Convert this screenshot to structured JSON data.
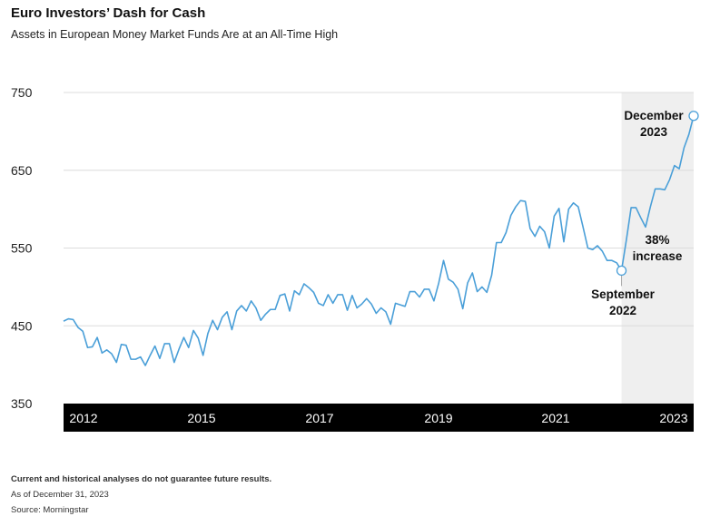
{
  "title": "Euro Investors’ Dash for Cash",
  "subtitle": "Assets in European Money Market Funds Are at an All-Time High",
  "footnotes": {
    "disclaimer": "Current and historical analyses do not guarantee future results.",
    "as_of": "As of December 31, 2023",
    "source": "Source: Morningstar"
  },
  "colors": {
    "line": "#4a9fd8",
    "shade": "#efefef",
    "axis_band": "#000000"
  },
  "chart_data": {
    "type": "line",
    "title": "Euro Investors’ Dash for Cash",
    "ylim": [
      350,
      750
    ],
    "yticks": [
      "350",
      "450",
      "550",
      "650",
      "750"
    ],
    "xticks": [
      "2012",
      "2015",
      "2017",
      "2019",
      "2021",
      "2023"
    ],
    "grid": true,
    "shaded_period": [
      "September 2022",
      "December 2023"
    ],
    "values": [
      456,
      459,
      458,
      448,
      443,
      422,
      423,
      435,
      415,
      419,
      414,
      403,
      426,
      425,
      407,
      407,
      410,
      399,
      412,
      424,
      408,
      427,
      427,
      403,
      420,
      435,
      422,
      444,
      434,
      412,
      440,
      457,
      445,
      461,
      468,
      445,
      469,
      476,
      469,
      482,
      473,
      457,
      465,
      471,
      471,
      489,
      491,
      469,
      495,
      490,
      504,
      499,
      493,
      479,
      476,
      490,
      479,
      490,
      490,
      470,
      489,
      473,
      478,
      485,
      478,
      466,
      473,
      468,
      452,
      479,
      477,
      475,
      494,
      494,
      487,
      497,
      497,
      482,
      505,
      534,
      510,
      506,
      497,
      472,
      505,
      518,
      494,
      500,
      493,
      515,
      557,
      557,
      570,
      592,
      603,
      611,
      610,
      575,
      565,
      578,
      571,
      550,
      591,
      601,
      558,
      600,
      608,
      603,
      577,
      550,
      548,
      553,
      546,
      534,
      534,
      531,
      521,
      560,
      602,
      602,
      589,
      577,
      603,
      626,
      626,
      625,
      638,
      656,
      652,
      679,
      696,
      720
    ],
    "annotations": {
      "end_line1": "December",
      "end_line2": "2023",
      "start_line1": "September",
      "start_line2": "2022",
      "change_line1": "38%",
      "change_line2": "increase"
    }
  }
}
